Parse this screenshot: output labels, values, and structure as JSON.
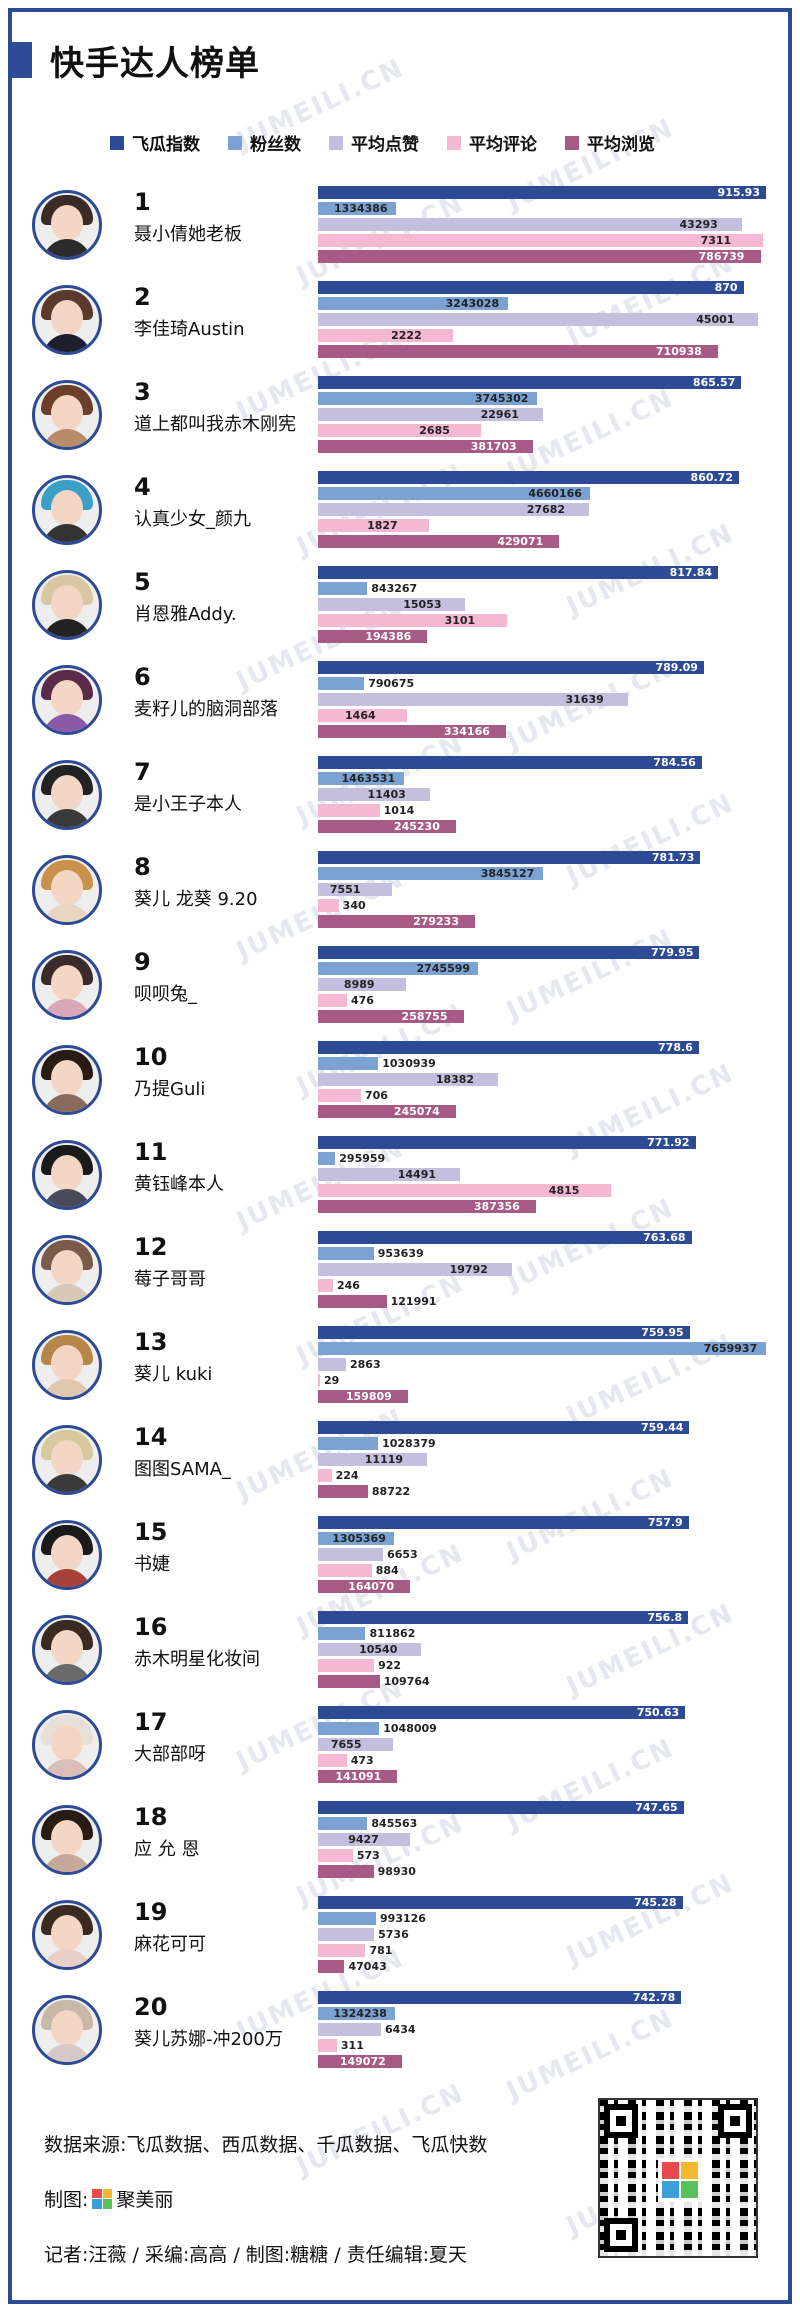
{
  "title": "快手达人榜单",
  "legend": [
    {
      "label": "飞瓜指数",
      "color": "#2d4a94"
    },
    {
      "label": "粉丝数",
      "color": "#7aa3d4"
    },
    {
      "label": "平均点赞",
      "color": "#c4bedf"
    },
    {
      "label": "平均评论",
      "color": "#f4b8d4"
    },
    {
      "label": "平均浏览",
      "color": "#a85a86"
    }
  ],
  "watermark": "JUMEILI.CN",
  "chart_data": {
    "type": "bar",
    "title": "快手达人榜单",
    "categories": [
      "1",
      "2",
      "3",
      "4",
      "5",
      "6",
      "7",
      "8",
      "9",
      "10",
      "11",
      "12",
      "13",
      "14",
      "15",
      "16",
      "17",
      "18",
      "19",
      "20"
    ],
    "names": [
      "聂小倩她老板",
      "李佳琦Austin",
      "道上都叫我赤木刚宪",
      "认真少女_颜九",
      "肖恩雅Addy.",
      "麦籽儿的脑洞部落",
      "是小王子本人",
      "葵儿 龙葵 9.20",
      "呗呗兔_",
      "乃提Guli",
      "黄钰峰本人",
      "莓子哥哥",
      "葵儿 kuki",
      "图图SAMA_",
      "书婕",
      "赤木明星化妆间",
      "大部部呀",
      "应 允 恩",
      "麻花可可",
      "葵儿苏娜-冲200万"
    ],
    "series": [
      {
        "name": "飞瓜指数",
        "values": [
          915.93,
          870,
          865.57,
          860.72,
          817.84,
          789.09,
          784.56,
          781.73,
          779.95,
          778.6,
          771.92,
          763.68,
          759.95,
          759.44,
          757.9,
          756.8,
          750.63,
          747.65,
          745.28,
          742.78
        ]
      },
      {
        "name": "粉丝数",
        "values": [
          1334386,
          3243028,
          3745302,
          4660166,
          843267,
          790675,
          1463531,
          3845127,
          2745599,
          1030939,
          295959,
          953639,
          7659937,
          1028379,
          1305369,
          811862,
          1048009,
          845563,
          993126,
          1324238
        ]
      },
      {
        "name": "平均点赞",
        "values": [
          43293,
          45001,
          22961,
          27682,
          15053,
          31639,
          11403,
          7551,
          8989,
          18382,
          14491,
          19792,
          2863,
          11119,
          6653,
          10540,
          7655,
          9427,
          5736,
          6434
        ]
      },
      {
        "name": "平均评论",
        "values": [
          7311,
          2222,
          2685,
          1827,
          3101,
          1464,
          1014,
          340,
          476,
          706,
          4815,
          246,
          29,
          224,
          884,
          922,
          473,
          573,
          781,
          311
        ]
      },
      {
        "name": "平均浏览",
        "values": [
          786739,
          710938,
          381703,
          429071,
          194386,
          334166,
          245230,
          279233,
          258755,
          245074,
          387356,
          121991,
          159809,
          88722,
          164070,
          109764,
          141091,
          98930,
          47043,
          149072
        ]
      }
    ]
  },
  "footer": {
    "source": "数据来源:飞瓜数据、西瓜数据、千瓜数据、飞瓜快数",
    "maker_prefix": "制图:",
    "maker_brand": "聚美丽",
    "credits": "记者:汪薇 / 采编:高高 / 制图:糖糖 / 责任编辑:夏天"
  },
  "avatar_styles": [
    {
      "hair": "#3b2a25",
      "body": "#2b2b2b"
    },
    {
      "hair": "#5a3a2a",
      "body": "#1e1e2e"
    },
    {
      "hair": "#6b3f2a",
      "body": "#b88b6a"
    },
    {
      "hair": "#3aa0c8",
      "body": "#333"
    },
    {
      "hair": "#d9c6a5",
      "body": "#222"
    },
    {
      "hair": "#5a2a4a",
      "body": "#8a5aa8"
    },
    {
      "hair": "#222",
      "body": "#3a3a3a"
    },
    {
      "hair": "#c8924a",
      "body": "#e8d5c0"
    },
    {
      "hair": "#3a2a2a",
      "body": "#d8a8b8"
    },
    {
      "hair": "#2a1a14",
      "body": "#8a6a5a"
    },
    {
      "hair": "#1a1a1a",
      "body": "#4a4a5a"
    },
    {
      "hair": "#7a5a4a",
      "body": "#d8c8b8"
    },
    {
      "hair": "#b8864a",
      "body": "#e0c8b0"
    },
    {
      "hair": "#d8c8a0",
      "body": "#3a3a3a"
    },
    {
      "hair": "#1a1a1a",
      "body": "#a8403a"
    },
    {
      "hair": "#3a2a20",
      "body": "#6a6a6a"
    },
    {
      "hair": "#e8e0d8",
      "body": "#d8c0b8"
    },
    {
      "hair": "#2a1a14",
      "body": "#c8a898"
    },
    {
      "hair": "#3a2a20",
      "body": "#e8d0c8"
    },
    {
      "hair": "#c8b8a8",
      "body": "#d8c8c8"
    }
  ]
}
